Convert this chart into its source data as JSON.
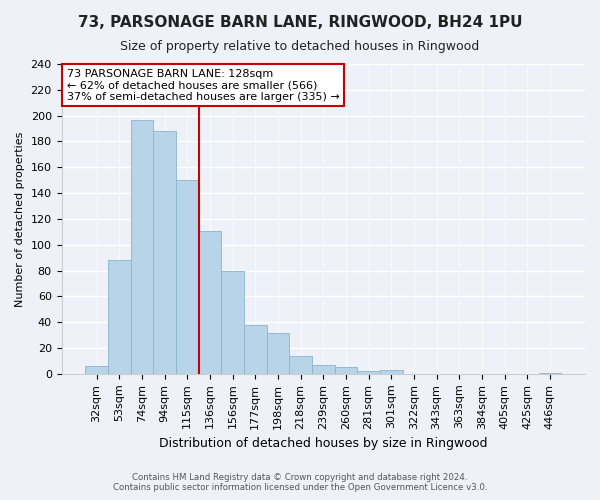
{
  "title": "73, PARSONAGE BARN LANE, RINGWOOD, BH24 1PU",
  "subtitle": "Size of property relative to detached houses in Ringwood",
  "xlabel": "Distribution of detached houses by size in Ringwood",
  "ylabel": "Number of detached properties",
  "bar_labels": [
    "32sqm",
    "53sqm",
    "74sqm",
    "94sqm",
    "115sqm",
    "136sqm",
    "156sqm",
    "177sqm",
    "198sqm",
    "218sqm",
    "239sqm",
    "260sqm",
    "281sqm",
    "301sqm",
    "322sqm",
    "343sqm",
    "363sqm",
    "384sqm",
    "405sqm",
    "425sqm",
    "446sqm"
  ],
  "bar_values": [
    6,
    88,
    197,
    188,
    150,
    111,
    80,
    38,
    32,
    14,
    7,
    5,
    2,
    3,
    0,
    0,
    0,
    0,
    0,
    0,
    1
  ],
  "bar_color": "#b8d4e8",
  "bar_edge_color": "#8ab4d0",
  "vline_color": "#cc0000",
  "vline_x_index": 4,
  "annotation_title": "73 PARSONAGE BARN LANE: 128sqm",
  "annotation_line1": "← 62% of detached houses are smaller (566)",
  "annotation_line2": "37% of semi-detached houses are larger (335) →",
  "annotation_box_edgecolor": "#cc0000",
  "ylim": [
    0,
    240
  ],
  "yticks": [
    0,
    20,
    40,
    60,
    80,
    100,
    120,
    140,
    160,
    180,
    200,
    220,
    240
  ],
  "footer1": "Contains HM Land Registry data © Crown copyright and database right 2024.",
  "footer2": "Contains public sector information licensed under the Open Government Licence v3.0.",
  "background_color": "#eef2f8",
  "grid_color": "#ffffff",
  "title_fontsize": 11,
  "subtitle_fontsize": 9,
  "ylabel_fontsize": 8,
  "xlabel_fontsize": 9,
  "tick_fontsize": 8,
  "annotation_fontsize": 8
}
